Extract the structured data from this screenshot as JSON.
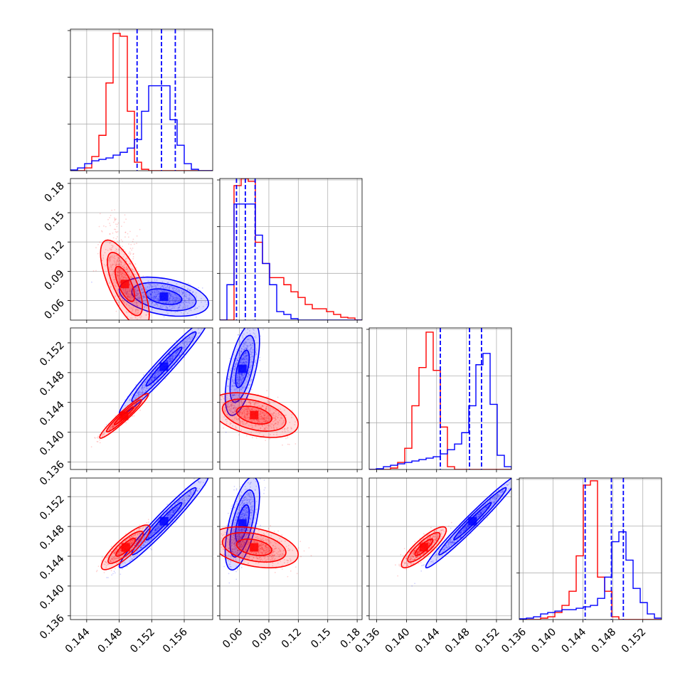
{
  "chart_data": {
    "type": "corner",
    "grid": true,
    "colors": {
      "series_a": "#ff0000",
      "series_b": "#0000ff"
    },
    "parameters": [
      {
        "range": [
          0.142,
          0.1595
        ],
        "ticks": [
          "0.144",
          "0.148",
          "0.152",
          "0.156"
        ],
        "tick_values": [
          0.144,
          0.148,
          0.152,
          0.156
        ],
        "quantiles_b": [
          0.1502,
          0.1532,
          0.1549
        ],
        "hist_a": [
          0,
          0,
          0.02,
          0.1,
          0.25,
          0.62,
          0.97,
          0.95,
          0.42,
          0.06,
          0.01,
          0,
          0,
          0,
          0,
          0,
          0,
          0,
          0,
          0
        ],
        "hist_b": [
          0.005,
          0.02,
          0.05,
          0.07,
          0.08,
          0.09,
          0.11,
          0.13,
          0.16,
          0.22,
          0.42,
          0.6,
          0.6,
          0.6,
          0.36,
          0.18,
          0.05,
          0.01,
          0,
          0
        ],
        "mean_a": 0.1485,
        "sd_a": 0.0013,
        "mean_b": 0.1535,
        "sd_b": 0.0017
      },
      {
        "range": [
          0.04,
          0.185
        ],
        "ticks": [
          "0.06",
          "0.09",
          "0.12",
          "0.15",
          "0.18"
        ],
        "tick_values": [
          0.06,
          0.09,
          0.12,
          0.15,
          0.18
        ],
        "quantiles_b": [
          0.057,
          0.066,
          0.076
        ],
        "hist_a": [
          0,
          0,
          0.95,
          1.0,
          0.98,
          0.55,
          0.4,
          0.3,
          0.3,
          0.25,
          0.2,
          0.16,
          0.11,
          0.08,
          0.08,
          0.06,
          0.04,
          0.02,
          0.015,
          0
        ],
        "hist_b": [
          0,
          0.25,
          0.82,
          0.82,
          0.82,
          0.6,
          0.4,
          0.25,
          0.06,
          0.04,
          0.01,
          0,
          0,
          0,
          0,
          0,
          0,
          0,
          0,
          0
        ],
        "mean_a": 0.075,
        "sd_a": 0.016,
        "mean_b": 0.065,
        "sd_b": 0.008
      },
      {
        "range": [
          0.135,
          0.154
        ],
        "ticks": [
          "0.136",
          "0.140",
          "0.144",
          "0.148",
          "0.152"
        ],
        "tick_values": [
          0.136,
          0.14,
          0.144,
          0.148,
          0.152
        ],
        "quantiles_b": [
          0.1445,
          0.1484,
          0.15
        ],
        "hist_a": [
          0,
          0,
          0,
          0.01,
          0.05,
          0.15,
          0.45,
          0.72,
          0.97,
          0.7,
          0.3,
          0.02,
          0,
          0,
          0,
          0,
          0,
          0,
          0,
          0
        ],
        "hist_b": [
          0,
          0.005,
          0.02,
          0.03,
          0.04,
          0.05,
          0.06,
          0.07,
          0.08,
          0.09,
          0.11,
          0.14,
          0.18,
          0.26,
          0.45,
          0.74,
          0.82,
          0.46,
          0.1,
          0.02
        ],
        "mean_a": 0.1422,
        "sd_a": 0.0012,
        "mean_b": 0.1488,
        "sd_b": 0.0014
      },
      {
        "range": [
          0.1355,
          0.1545
        ],
        "ticks": [
          "0.136",
          "0.140",
          "0.144",
          "0.148",
          "0.152"
        ],
        "tick_values": [
          0.136,
          0.14,
          0.144,
          0.148,
          0.152
        ],
        "quantiles_b": [
          0.1443,
          0.1478,
          0.1494
        ],
        "hist_a": [
          0,
          0,
          0,
          0.01,
          0.02,
          0.05,
          0.1,
          0.2,
          0.45,
          0.95,
          0.98,
          0.3,
          0.2,
          0.02,
          0,
          0,
          0,
          0,
          0,
          0
        ],
        "hist_b": [
          0.005,
          0.01,
          0.02,
          0.04,
          0.05,
          0.06,
          0.07,
          0.07,
          0.08,
          0.09,
          0.1,
          0.15,
          0.3,
          0.55,
          0.62,
          0.42,
          0.22,
          0.12,
          0.04,
          0.01
        ],
        "mean_a": 0.145,
        "sd_a": 0.0011,
        "mean_b": 0.1487,
        "sd_b": 0.0016
      }
    ],
    "pairs": [
      {
        "row": 1,
        "col": 0,
        "a": {
          "center": [
            0.1487,
            0.077
          ],
          "sd_x": 0.0012,
          "sd_y": 0.018,
          "corr": -0.7,
          "skew_y": 0.025
        },
        "b": {
          "center": [
            0.1535,
            0.064
          ],
          "sd_x": 0.0022,
          "sd_y": 0.008,
          "corr": -0.35,
          "skew_y": 0
        }
      },
      {
        "row": 2,
        "col": 0,
        "a": {
          "center": [
            0.1486,
            0.1422
          ],
          "sd_x": 0.0012,
          "sd_y": 0.0012,
          "corr": 0.96,
          "skew_y": 0
        },
        "b": {
          "center": [
            0.1535,
            0.1488
          ],
          "sd_x": 0.0022,
          "sd_y": 0.0026,
          "corr": 0.97,
          "skew_y": 0
        }
      },
      {
        "row": 2,
        "col": 1,
        "a": {
          "center": [
            0.075,
            0.1423
          ],
          "sd_x": 0.018,
          "sd_y": 0.0012,
          "corr": -0.4,
          "skew_y": 0
        },
        "b": {
          "center": [
            0.063,
            0.1485
          ],
          "sd_x": 0.007,
          "sd_y": 0.0025,
          "corr": 0.6,
          "skew_y": 0
        }
      },
      {
        "row": 3,
        "col": 0,
        "a": {
          "center": [
            0.1488,
            0.1452
          ],
          "sd_x": 0.0012,
          "sd_y": 0.0012,
          "corr": 0.85,
          "skew_y": 0
        },
        "b": {
          "center": [
            0.1535,
            0.1487
          ],
          "sd_x": 0.0022,
          "sd_y": 0.0025,
          "corr": 0.97,
          "skew_y": 0
        }
      },
      {
        "row": 3,
        "col": 1,
        "a": {
          "center": [
            0.075,
            0.1452
          ],
          "sd_x": 0.018,
          "sd_y": 0.0011,
          "corr": -0.35,
          "skew_y": 0
        },
        "b": {
          "center": [
            0.063,
            0.1484
          ],
          "sd_x": 0.007,
          "sd_y": 0.0025,
          "corr": 0.6,
          "skew_y": 0
        }
      },
      {
        "row": 3,
        "col": 2,
        "a": {
          "center": [
            0.1423,
            0.1452
          ],
          "sd_x": 0.0012,
          "sd_y": 0.0011,
          "corr": 0.85,
          "skew_y": 0
        },
        "b": {
          "center": [
            0.1488,
            0.1487
          ],
          "sd_x": 0.0025,
          "sd_y": 0.0025,
          "corr": 0.98,
          "skew_y": 0
        }
      }
    ]
  }
}
